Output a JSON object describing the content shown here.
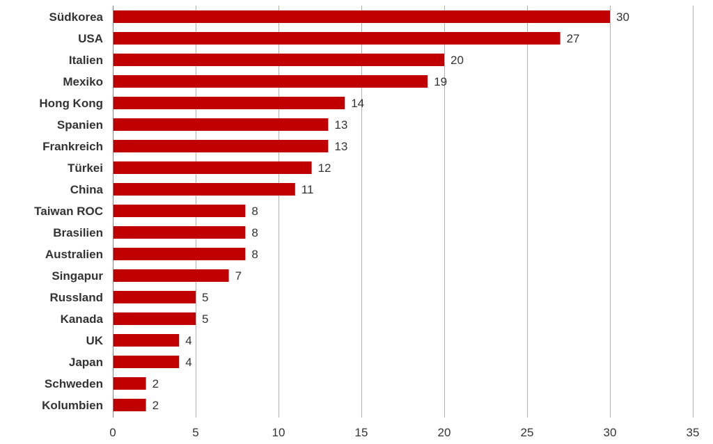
{
  "chart_data": {
    "type": "bar",
    "orientation": "horizontal",
    "categories": [
      "Südkorea",
      "USA",
      "Italien",
      "Mexiko",
      "Hong Kong",
      "Spanien",
      "Frankreich",
      "Türkei",
      "China",
      "Taiwan ROC",
      "Brasilien",
      "Australien",
      "Singapur",
      "Russland",
      "Kanada",
      "UK",
      "Japan",
      "Schweden",
      "Kolumbien"
    ],
    "values": [
      30,
      27,
      20,
      19,
      14,
      13,
      13,
      12,
      11,
      8,
      8,
      8,
      7,
      5,
      5,
      4,
      4,
      2,
      2
    ],
    "xlim": [
      0,
      35
    ],
    "xticks": [
      0,
      5,
      10,
      15,
      20,
      25,
      30,
      35
    ],
    "grid": true,
    "data_labels": true,
    "bar_color": "#c00000",
    "grid_color": "#b0b0b0",
    "text_color": "#333333"
  }
}
